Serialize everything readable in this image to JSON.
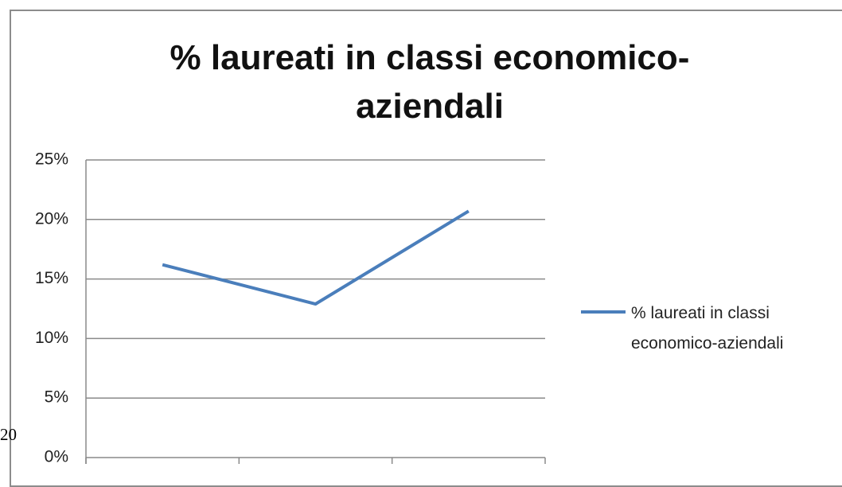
{
  "chart_data": {
    "type": "line",
    "title": "% laureati in classi economico-aziendali",
    "categories": [
      null,
      null,
      null
    ],
    "series": [
      {
        "name": "% laureati in classi economico-aziendali",
        "color": "#4a7ebb",
        "values": [
          16.2,
          12.9,
          20.7
        ]
      }
    ],
    "ylim": [
      0,
      25
    ],
    "yticks": [
      {
        "value": 0,
        "label": "0%"
      },
      {
        "value": 5,
        "label": "5%"
      },
      {
        "value": 10,
        "label": "10%"
      },
      {
        "value": 15,
        "label": "15%"
      },
      {
        "value": 20,
        "label": "20%"
      },
      {
        "value": 25,
        "label": "25%"
      }
    ],
    "grid": true,
    "legend": "right"
  },
  "side_text": "20"
}
